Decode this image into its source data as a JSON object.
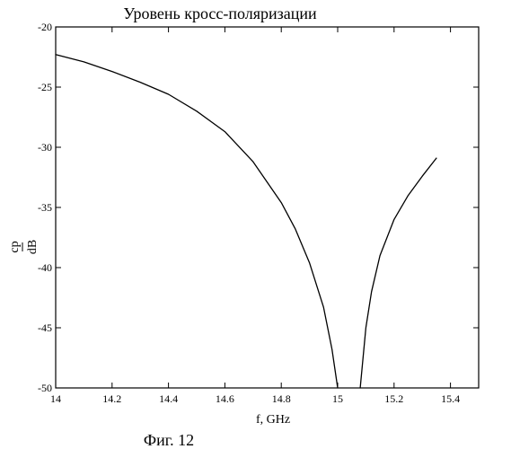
{
  "chart_data": {
    "type": "line",
    "title": "Уровень кросс-поляризации",
    "xlabel": "f, GHz",
    "ylabel_top": "cp",
    "ylabel_bottom": "dB",
    "caption": "Фиг. 12",
    "xlim": [
      14,
      15.5
    ],
    "ylim": [
      -50,
      -20
    ],
    "xticks": [
      14,
      14.2,
      14.4,
      14.6,
      14.8,
      15,
      15.2,
      15.4
    ],
    "xtick_labels": [
      "14",
      "14.2",
      "14.4",
      "14.6",
      "14.8",
      "15",
      "15.2",
      "15.4"
    ],
    "yticks": [
      -20,
      -25,
      -30,
      -35,
      -40,
      -45,
      -50
    ],
    "ytick_labels": [
      "-20",
      "-25",
      "-30",
      "-35",
      "-40",
      "-45",
      "-50"
    ],
    "grid": false,
    "series": [
      {
        "x": [
          14.0,
          14.1,
          14.2,
          14.3,
          14.4,
          14.5,
          14.6,
          14.7,
          14.8,
          14.85,
          14.9,
          14.95,
          14.98,
          15.0
        ],
        "y": [
          -22.3,
          -22.9,
          -23.7,
          -24.6,
          -25.6,
          -27.0,
          -28.7,
          -31.2,
          -34.6,
          -36.8,
          -39.6,
          -43.3,
          -46.8,
          -50.0
        ]
      },
      {
        "x": [
          15.08,
          15.1,
          15.12,
          15.15,
          15.2,
          15.25,
          15.3,
          15.35
        ],
        "y": [
          -50.0,
          -45.0,
          -42.0,
          -39.0,
          -36.0,
          -34.0,
          -32.4,
          -30.9
        ]
      }
    ]
  }
}
